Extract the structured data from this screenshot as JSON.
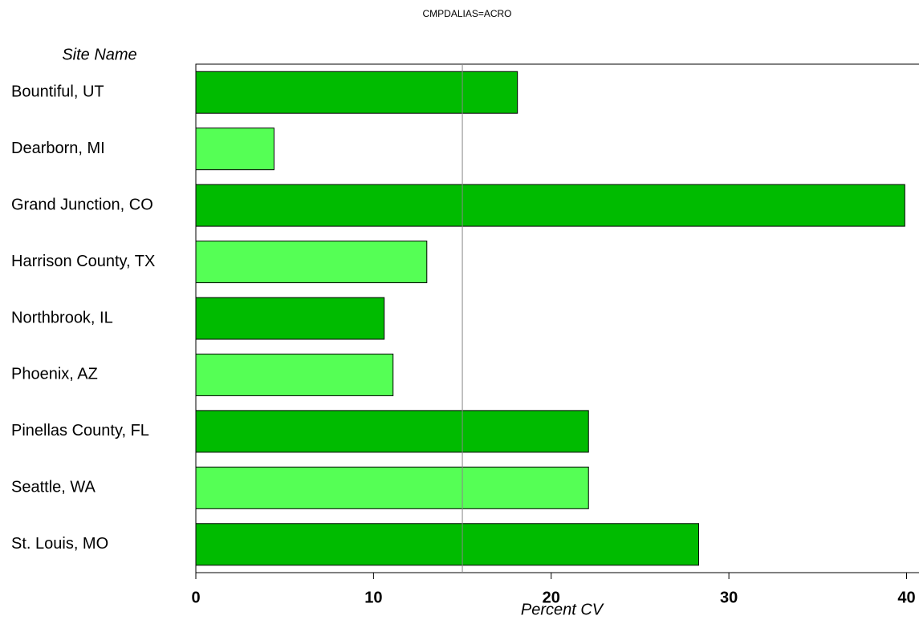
{
  "chart_data": {
    "type": "hbar",
    "title": "CMPDALIAS=ACRO",
    "y_label": "Site Name",
    "x_label": "Percent CV",
    "categories": [
      "Bountiful, UT",
      "Dearborn, MI",
      "Grand Junction, CO",
      "Harrison County, TX",
      "Northbrook, IL",
      "Phoenix, AZ",
      "Pinellas County, FL",
      "Seattle, WA",
      "St. Louis, MO"
    ],
    "values": [
      18.1,
      4.4,
      39.9,
      13.0,
      10.6,
      11.1,
      22.1,
      22.1,
      28.3
    ],
    "colors": [
      "#00bb00",
      "#55ff55",
      "#00bb00",
      "#55ff55",
      "#00bb00",
      "#55ff55",
      "#00bb00",
      "#55ff55",
      "#00bb00"
    ],
    "xlim": [
      0,
      40.7
    ],
    "xticks": [
      0,
      10,
      20,
      30,
      40
    ],
    "reference_line": 15
  }
}
